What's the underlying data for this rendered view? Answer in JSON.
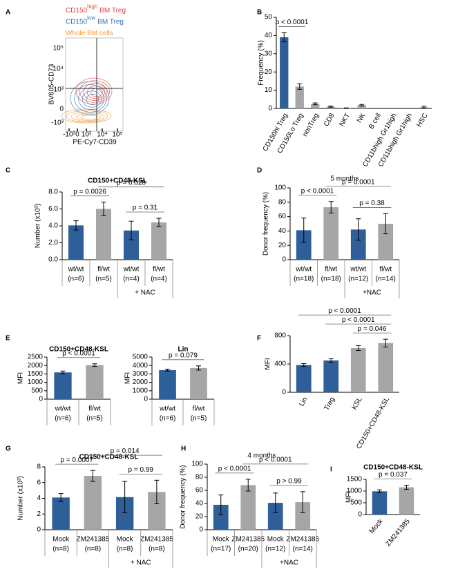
{
  "chart_data": [
    {
      "panel": "A",
      "type": "contour",
      "series": [
        {
          "name": "CD150",
          "name_sup": "high",
          "name_rest": "BM Treg",
          "color": "#e8413c"
        },
        {
          "name": "CD150",
          "name_sup": "low",
          "name_rest": "BM Treg",
          "color": "#2f6fb5"
        },
        {
          "name": "Whole BM cells",
          "color": "#f5983a"
        }
      ],
      "xlabel": "PE-Cy7-CD39",
      "ylabel": "BV605-CD73",
      "xtick_labels": [
        "-10³",
        "0",
        "10³",
        "10⁴",
        "10⁵"
      ],
      "ytick_labels": [
        "-10³",
        "0",
        "10³",
        "10⁴",
        "10⁵"
      ]
    },
    {
      "panel": "B",
      "type": "bar",
      "ylabel": "Frequency (%)",
      "categories": [
        "CD150hi Treg",
        "CD150Lo Treg",
        "nonTreg",
        "CD8",
        "NKT",
        "NK",
        "B cell",
        "CD11bhigh Gr1high",
        "CD11bhigh Gr1high",
        "HSC"
      ],
      "values": [
        39,
        12,
        2.5,
        1,
        0.2,
        1.8,
        0,
        0,
        0,
        0.7
      ],
      "errors": [
        2.5,
        1.5,
        0.5,
        0.3,
        0.1,
        0.4,
        0,
        0,
        0,
        0.5
      ],
      "colors": [
        "#2f5f98",
        "#a6a6a6",
        "#a6a6a6",
        "#a6a6a6",
        "#a6a6a6",
        "#a6a6a6",
        "#a6a6a6",
        "#a6a6a6",
        "#a6a6a6",
        "#a6a6a6"
      ],
      "ylim": [
        0,
        50
      ],
      "yticks": [
        0,
        10,
        20,
        30,
        40,
        50
      ],
      "rotate_labels": true,
      "comparisons": [
        {
          "label": "p < 0.0001",
          "pair": [
            0,
            1
          ]
        }
      ]
    },
    {
      "panel": "C",
      "type": "bar",
      "title": "CD150+CD48-KSL",
      "ylabel": "Number (x10³)",
      "categories": [
        "wt/wt",
        "fl/wt",
        "wt/wt",
        "fl/wt"
      ],
      "n_labels": [
        "(n=6)",
        "(n=5)",
        "(n=4)",
        "(n=4)"
      ],
      "group_label": "+ NAC",
      "group": [
        2,
        3
      ],
      "values": [
        4.05,
        6.0,
        3.45,
        4.4
      ],
      "errors": [
        0.55,
        0.8,
        1.1,
        0.5
      ],
      "colors": [
        "#2f5f98",
        "#a6a6a6",
        "#2f5f98",
        "#a6a6a6"
      ],
      "ylim": [
        0,
        8
      ],
      "yticks": [
        {
          "value": 0,
          "label": "0.0"
        },
        {
          "value": 2,
          "label": "2.0"
        },
        {
          "value": 4,
          "label": "4.0"
        },
        {
          "value": 6,
          "label": "6.0"
        },
        {
          "value": 8,
          "label": "8.0"
        }
      ],
      "comparisons": [
        {
          "label": "p = 0.0026",
          "pair": [
            0,
            1
          ]
        },
        {
          "label": "p = 0.31",
          "pair": [
            2,
            3
          ]
        },
        {
          "label": "p = 0.028",
          "pair": [
            1,
            3
          ]
        }
      ]
    },
    {
      "panel": "D",
      "type": "bar",
      "title": "5 months",
      "ylabel": "Donor frequency (%)",
      "categories": [
        "wt/wt",
        "fl/wt",
        "wt/wt",
        "fl/wt"
      ],
      "n_labels": [
        "(n=18)",
        "(n=18)",
        "(n=12)",
        "(n=14)"
      ],
      "group_label": "+NAC",
      "group": [
        2,
        3
      ],
      "values": [
        41,
        73,
        42,
        50
      ],
      "errors": [
        17,
        8,
        15,
        14
      ],
      "colors": [
        "#2f5f98",
        "#a6a6a6",
        "#2f5f98",
        "#a6a6a6"
      ],
      "ylim": [
        0,
        100
      ],
      "yticks": [
        0,
        20,
        40,
        60,
        80,
        100
      ],
      "comparisons": [
        {
          "label": "p < 0.0001",
          "pair": [
            0,
            1
          ]
        },
        {
          "label": "p = 0.38",
          "pair": [
            2,
            3
          ]
        },
        {
          "label": "p = 0.0001",
          "pair": [
            1,
            3
          ]
        }
      ]
    },
    {
      "panel": "E",
      "type": "bar",
      "title": "CD150+CD48-KSL",
      "ylabel": "MFI",
      "categories": [
        "wt/wt",
        "fl/wt"
      ],
      "n_labels": [
        "(n=6)",
        "(n=5)"
      ],
      "values": [
        1590,
        2020
      ],
      "errors": [
        80,
        80
      ],
      "colors": [
        "#2f5f98",
        "#a6a6a6"
      ],
      "ylim": [
        0,
        2500
      ],
      "yticks": [
        0,
        500,
        1000,
        1500,
        2000,
        2500
      ],
      "comparisons": [
        {
          "label": "p < 0.0001",
          "pair": [
            0,
            1
          ]
        }
      ]
    },
    {
      "type": "bar",
      "title": "Lin",
      "ylabel": "MFI",
      "categories": [
        "wt/wt",
        "fl/wt"
      ],
      "n_labels": [
        "(n=6)",
        "(n=5)"
      ],
      "values": [
        3450,
        3700
      ],
      "errors": [
        120,
        250
      ],
      "colors": [
        "#2f5f98",
        "#a6a6a6"
      ],
      "ylim": [
        0,
        5000
      ],
      "yticks": [
        0,
        1000,
        2000,
        3000,
        4000,
        5000
      ],
      "comparisons": [
        {
          "label": "p = 0.079",
          "pair": [
            0,
            1
          ]
        }
      ]
    },
    {
      "panel": "F",
      "type": "bar",
      "ylabel": "MFI",
      "categories": [
        "Lin",
        "Treg",
        "KSL",
        "CD150+CD48-KSL"
      ],
      "values": [
        385,
        450,
        625,
        695
      ],
      "errors": [
        20,
        25,
        35,
        55
      ],
      "colors": [
        "#2f5f98",
        "#2f5f98",
        "#a6a6a6",
        "#a6a6a6"
      ],
      "ylim": [
        0,
        800
      ],
      "yticks": [
        0,
        400,
        800
      ],
      "rotate_labels": true,
      "comparisons": [
        {
          "label": "p = 0.046",
          "pair": [
            2,
            3
          ]
        },
        {
          "label": "p < 0.0001",
          "pair": [
            1,
            3
          ]
        },
        {
          "label": "p < 0.0001",
          "pair": [
            0,
            3
          ]
        }
      ]
    },
    {
      "panel": "G",
      "type": "bar",
      "title": "CD150+CD48-KSL",
      "ylabel": "Number (x10³)",
      "categories": [
        "Mock",
        "ZM241385",
        "Mock",
        "ZM241385"
      ],
      "n_labels": [
        "(n=8)",
        "(n=8)",
        "(n=8)",
        "(n=8)"
      ],
      "group_label": "+ NAC",
      "group": [
        2,
        3
      ],
      "values": [
        4.1,
        6.85,
        4.15,
        4.8
      ],
      "errors": [
        0.5,
        0.7,
        2.0,
        1.5
      ],
      "colors": [
        "#2f5f98",
        "#a6a6a6",
        "#2f5f98",
        "#a6a6a6"
      ],
      "ylim": [
        0,
        8
      ],
      "yticks": [
        0,
        2,
        4,
        6,
        8
      ],
      "comparisons": [
        {
          "label": "p = 0.0007",
          "pair": [
            0,
            1
          ]
        },
        {
          "label": "p = 0.99",
          "pair": [
            2,
            3
          ]
        },
        {
          "label": "p = 0.014",
          "pair": [
            1,
            3
          ]
        }
      ]
    },
    {
      "panel": "H",
      "type": "bar",
      "title": "4 months",
      "ylabel": "Donor frequency (%)",
      "categories": [
        "Mock",
        "ZM241385",
        "Mock",
        "ZM241385"
      ],
      "n_labels": [
        "(n=17)",
        "(n=20)",
        "(n=12)",
        "(n=14)"
      ],
      "group_label": "+NAC",
      "group": [
        2,
        3
      ],
      "values": [
        38,
        68,
        41,
        42
      ],
      "errors": [
        15,
        9,
        15,
        16
      ],
      "colors": [
        "#2f5f98",
        "#a6a6a6",
        "#2f5f98",
        "#a6a6a6"
      ],
      "ylim": [
        0,
        100
      ],
      "yticks": [
        0,
        20,
        40,
        60,
        80,
        100
      ],
      "comparisons": [
        {
          "label": "p < 0.0001",
          "pair": [
            0,
            1
          ]
        },
        {
          "label": "p > 0.99",
          "pair": [
            2,
            3
          ]
        },
        {
          "label": "p < 0.0001",
          "pair": [
            1,
            3
          ]
        }
      ]
    },
    {
      "panel": "I",
      "type": "bar",
      "title": "CD150+CD48-KSL",
      "ylabel": "MFI",
      "categories": [
        "Mock",
        "ZM241385"
      ],
      "values": [
        990,
        1160
      ],
      "errors": [
        60,
        90
      ],
      "colors": [
        "#2f5f98",
        "#a6a6a6"
      ],
      "ylim": [
        0,
        1500
      ],
      "yticks": [
        0,
        500,
        1000,
        1500
      ],
      "rotate_labels": true,
      "comparisons": [
        {
          "label": "p = 0.037",
          "pair": [
            0,
            1
          ]
        }
      ]
    }
  ]
}
